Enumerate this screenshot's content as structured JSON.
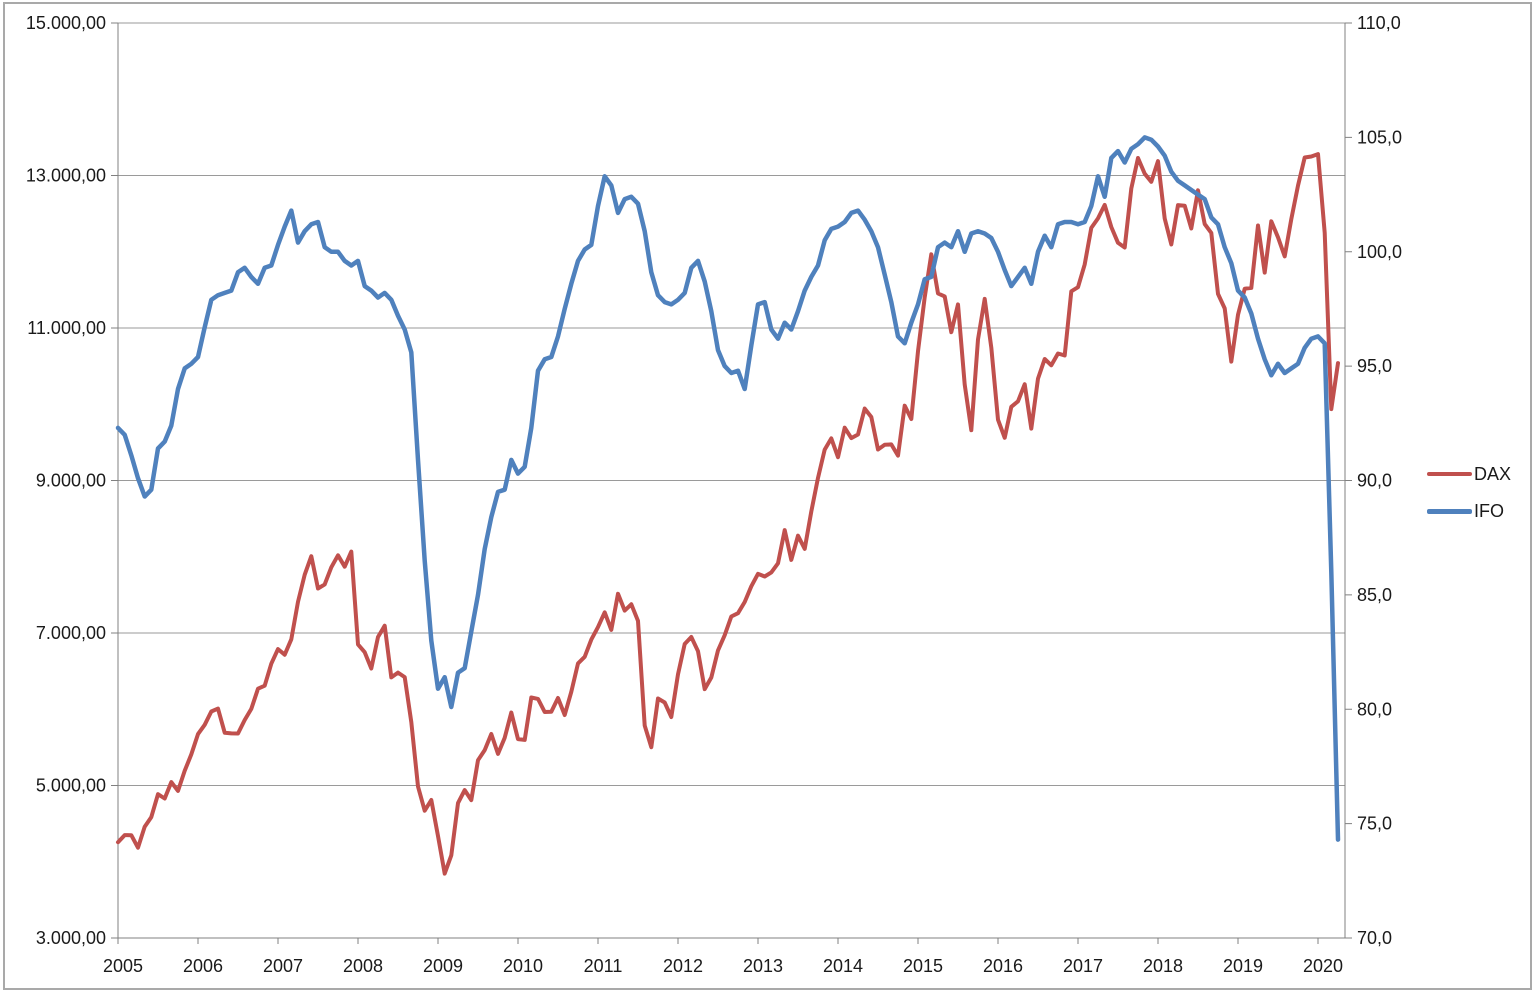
{
  "chart_data": {
    "type": "line",
    "title": "",
    "x_unit": "month",
    "x_start": "2005-01",
    "x_end": "2020-04",
    "x_tick_labels": [
      "2005",
      "2006",
      "2007",
      "2008",
      "2009",
      "2010",
      "2011",
      "2012",
      "2013",
      "2014",
      "2015",
      "2016",
      "2017",
      "2018",
      "2019",
      "2020"
    ],
    "left_axis": {
      "min": 3000,
      "max": 15000,
      "step": 2000,
      "tick_labels": [
        "15.000,00",
        "13.000,00",
        "11.000,00",
        "9.000,00",
        "7.000,00",
        "5.000,00",
        "3.000,00"
      ]
    },
    "right_axis": {
      "min": 70,
      "max": 110,
      "step": 5,
      "tick_labels": [
        "110,0",
        "105,0",
        "100,0",
        "95,0",
        "90,0",
        "85,0",
        "80,0",
        "75,0",
        "70,0"
      ]
    },
    "grid": "horizontal-only",
    "legend": {
      "position": "right",
      "entries": [
        {
          "label": "DAX",
          "color": "#C0504D"
        },
        {
          "label": "IFO",
          "color": "#4F81BD"
        }
      ]
    },
    "series": [
      {
        "name": "DAX",
        "axis": "left",
        "color": "#C0504D",
        "values": [
          4256,
          4350,
          4348,
          4184,
          4460,
          4586,
          4886,
          4830,
          5044,
          4929,
          5193,
          5408,
          5674,
          5796,
          5970,
          6009,
          5692,
          5683,
          5682,
          5859,
          6004,
          6269,
          6309,
          6597,
          6789,
          6715,
          6917,
          7409,
          7765,
          8007,
          7584,
          7638,
          7861,
          8019,
          7870,
          8067,
          6851,
          6748,
          6535,
          6948,
          7096,
          6418,
          6480,
          6422,
          5831,
          4987,
          4669,
          4810,
          4338,
          3844,
          4085,
          4769,
          4940,
          4809,
          5332,
          5464,
          5675,
          5414,
          5626,
          5957,
          5609,
          5598,
          6154,
          6136,
          5964,
          5966,
          6148,
          5925,
          6229,
          6601,
          6688,
          6914,
          7077,
          7272,
          7041,
          7514,
          7294,
          7376,
          7159,
          5785,
          5502,
          6141,
          6088,
          5898,
          6459,
          6856,
          6947,
          6761,
          6264,
          6416,
          6772,
          6971,
          7216,
          7260,
          7406,
          7612,
          7776,
          7741,
          7795,
          7914,
          8349,
          7959,
          8276,
          8103,
          8594,
          9034,
          9405,
          9552,
          9306,
          9692,
          9556,
          9603,
          9943,
          9833,
          9407,
          9470,
          9474,
          9327,
          9981,
          9806,
          10694,
          11402,
          11966,
          11454,
          11414,
          10945,
          11309,
          10259,
          9660,
          10850,
          11382,
          10743,
          9798,
          9560,
          9966,
          10039,
          10263,
          9680,
          10337,
          10593,
          10511,
          10665,
          10640,
          11481,
          11535,
          11834,
          12313,
          12438,
          12615,
          12325,
          12118,
          12056,
          12829,
          13230,
          13024,
          12918,
          13189,
          12436,
          12097,
          12612,
          12604,
          12306,
          12806,
          12364,
          12247,
          11447,
          11257,
          10559,
          11173,
          11516,
          11526,
          12344,
          11727,
          12399,
          12189,
          11939,
          12428,
          12867,
          13236,
          13249,
          13281,
          12250,
          9936,
          10540
        ]
      },
      {
        "name": "IFO",
        "axis": "right",
        "color": "#4F81BD",
        "values": [
          92.3,
          92.0,
          91.1,
          90.1,
          89.3,
          89.6,
          91.4,
          91.7,
          92.4,
          94.0,
          94.9,
          95.1,
          95.4,
          96.7,
          97.9,
          98.1,
          98.2,
          98.3,
          99.1,
          99.3,
          98.9,
          98.6,
          99.3,
          99.4,
          100.3,
          101.1,
          101.8,
          100.4,
          100.9,
          101.2,
          101.3,
          100.2,
          100.0,
          100.0,
          99.6,
          99.4,
          99.6,
          98.5,
          98.3,
          98.0,
          98.2,
          97.9,
          97.2,
          96.6,
          95.6,
          90.9,
          86.5,
          83.0,
          80.9,
          81.4,
          80.1,
          81.6,
          81.8,
          83.4,
          85.0,
          87.0,
          88.4,
          89.5,
          89.6,
          90.9,
          90.3,
          90.6,
          92.3,
          94.8,
          95.3,
          95.4,
          96.3,
          97.5,
          98.6,
          99.6,
          100.1,
          100.3,
          102.0,
          103.3,
          102.9,
          101.7,
          102.3,
          102.4,
          102.1,
          100.9,
          99.1,
          98.1,
          97.8,
          97.7,
          97.9,
          98.2,
          99.3,
          99.6,
          98.7,
          97.4,
          95.7,
          95.0,
          94.7,
          94.8,
          94.0,
          95.9,
          97.7,
          97.8,
          96.6,
          96.2,
          96.9,
          96.6,
          97.4,
          98.3,
          98.9,
          99.4,
          100.5,
          101.0,
          101.1,
          101.3,
          101.7,
          101.8,
          101.4,
          100.9,
          100.2,
          99.0,
          97.8,
          96.3,
          96.0,
          96.9,
          97.7,
          98.8,
          98.9,
          100.2,
          100.4,
          100.2,
          100.9,
          100.0,
          100.8,
          100.9,
          100.8,
          100.6,
          100.0,
          99.2,
          98.5,
          98.9,
          99.3,
          98.6,
          100.0,
          100.7,
          100.2,
          101.2,
          101.3,
          101.3,
          101.2,
          101.3,
          102.0,
          103.3,
          102.4,
          104.1,
          104.4,
          103.9,
          104.5,
          104.7,
          105.0,
          104.9,
          104.6,
          104.2,
          103.5,
          103.1,
          102.9,
          102.7,
          102.5,
          102.3,
          101.5,
          101.2,
          100.2,
          99.5,
          98.3,
          98.0,
          97.3,
          96.2,
          95.3,
          94.6,
          95.1,
          94.7,
          94.9,
          95.1,
          95.8,
          96.2,
          96.3,
          96.0,
          86.0,
          74.3
        ]
      }
    ]
  }
}
